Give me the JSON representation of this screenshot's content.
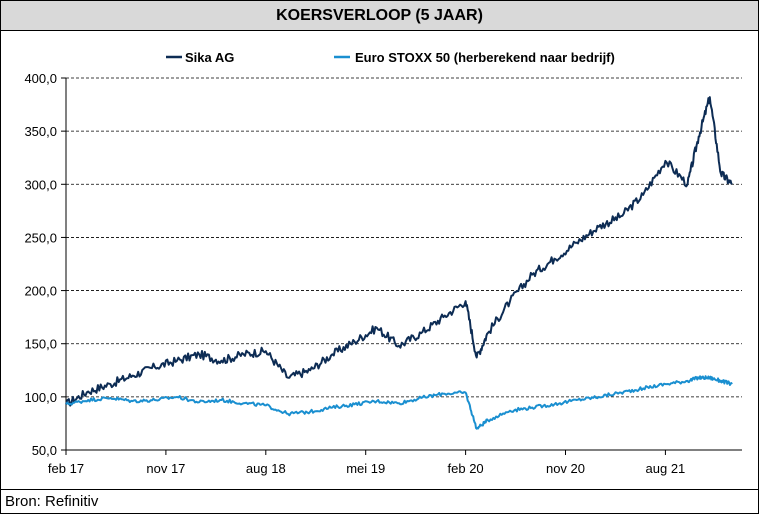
{
  "title": "KOERSVERLOOP (5 JAAR)",
  "source": "Bron: Refinitiv",
  "colors": {
    "sika": "#0d2c54",
    "stoxx": "#1a8fd0",
    "grid": "#000000"
  },
  "chart_data": {
    "type": "line",
    "title": "KOERSVERLOOP (5 JAAR)",
    "xlabel": "",
    "ylabel": "",
    "ylim": [
      50,
      400
    ],
    "yticks": [
      {
        "value": 50,
        "label": "50,0"
      },
      {
        "value": 100,
        "label": "100,0"
      },
      {
        "value": 150,
        "label": "150,0"
      },
      {
        "value": 200,
        "label": "200,0"
      },
      {
        "value": 250,
        "label": "250,0"
      },
      {
        "value": 300,
        "label": "300,0"
      },
      {
        "value": 350,
        "label": "350,0"
      },
      {
        "value": 400,
        "label": "400,0"
      }
    ],
    "xlim": [
      "2017-02",
      "2022-02"
    ],
    "xticks": [
      {
        "value": "2017-02",
        "label": "feb 17"
      },
      {
        "value": "2017-11",
        "label": "nov 17"
      },
      {
        "value": "2018-08",
        "label": "aug 18"
      },
      {
        "value": "2019-05",
        "label": "mei 19"
      },
      {
        "value": "2020-02",
        "label": "feb 20"
      },
      {
        "value": "2020-11",
        "label": "nov 20"
      },
      {
        "value": "2021-08",
        "label": "aug 21"
      }
    ],
    "grid": "horizontal dashed",
    "legend": "top",
    "x": [
      "2017-02",
      "2017-04",
      "2017-06",
      "2017-08",
      "2017-10",
      "2017-12",
      "2018-02",
      "2018-04",
      "2018-06",
      "2018-08",
      "2018-10",
      "2018-12",
      "2019-02",
      "2019-04",
      "2019-06",
      "2019-08",
      "2019-10",
      "2019-12",
      "2020-02",
      "2020-03",
      "2020-04",
      "2020-06",
      "2020-08",
      "2020-10",
      "2020-12",
      "2021-02",
      "2021-04",
      "2021-06",
      "2021-08",
      "2021-10",
      "2021-11",
      "2021-12",
      "2022-01",
      "2022-02"
    ],
    "series": [
      {
        "name": "Sika AG",
        "color": "#0d2c54",
        "values": [
          93,
          105,
          112,
          120,
          128,
          134,
          140,
          134,
          140,
          143,
          118,
          125,
          140,
          152,
          165,
          148,
          160,
          175,
          190,
          137,
          160,
          190,
          215,
          230,
          245,
          260,
          270,
          290,
          322,
          300,
          345,
          382,
          310,
          300
        ]
      },
      {
        "name": "Euro STOXX 50 (herberekend naar bedrijf)",
        "color": "#1a8fd0",
        "values": [
          93,
          97,
          99,
          96,
          97,
          100,
          95,
          97,
          94,
          92,
          84,
          86,
          90,
          93,
          96,
          94,
          99,
          103,
          104,
          70,
          78,
          87,
          90,
          93,
          97,
          100,
          104,
          108,
          112,
          115,
          118,
          118,
          115,
          112
        ]
      }
    ]
  }
}
